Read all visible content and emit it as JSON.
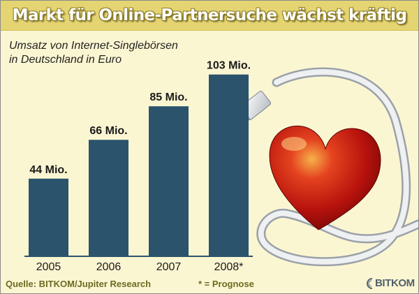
{
  "title": "Markt für Online-Partnersuche wächst kräftig",
  "subtitle": [
    "Umsatz von Internet-Singlebörsen",
    "in Deutschland in Euro"
  ],
  "source": "Quelle: BITKOM/Jupiter Research",
  "footnote": "* = Prognose",
  "logo": "BITKOM",
  "colors": {
    "background": "#fbf6d2",
    "title_bar": "#e5d572",
    "bar": "#2b536c",
    "source_text": "#6d6a20",
    "heart": "#c8140e"
  },
  "illustration": "heart-with-network-cable",
  "chart_data": {
    "type": "bar",
    "categories": [
      "2005",
      "2006",
      "2007",
      "2008*"
    ],
    "values": [
      44,
      66,
      85,
      103
    ],
    "value_labels": [
      "44 Mio.",
      "66 Mio.",
      "85 Mio.",
      "103 Mio."
    ],
    "unit": "Mio. Euro",
    "ylim": [
      0,
      110
    ],
    "grid": false,
    "legend": "none"
  }
}
